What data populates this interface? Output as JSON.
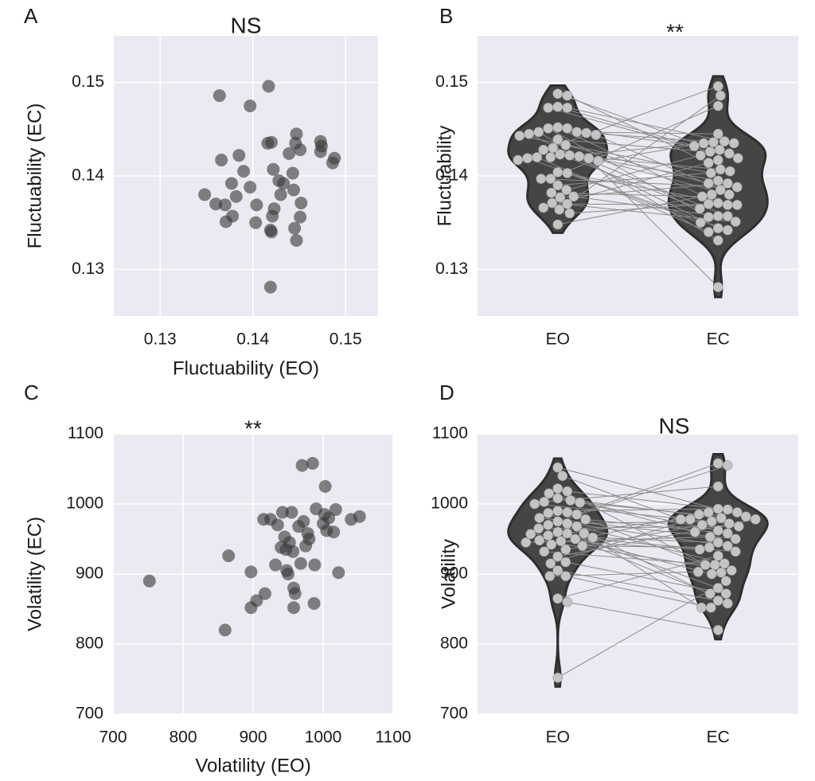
{
  "chart_data": [
    {
      "type": "scatter",
      "panel_label": "A",
      "title": "NS",
      "x_label": "Fluctuability (EO)",
      "y_label": "Fluctuability (EC)",
      "x": [
        0.1364,
        0.1417,
        0.1397,
        0.1366,
        0.1385,
        0.139,
        0.1377,
        0.1397,
        0.1348,
        0.136,
        0.137,
        0.1382,
        0.1371,
        0.1378,
        0.1404,
        0.1403,
        0.1416,
        0.142,
        0.1422,
        0.1428,
        0.1433,
        0.143,
        0.1423,
        0.1421,
        0.1419,
        0.142,
        0.1419,
        0.1439,
        0.1443,
        0.1444,
        0.1446,
        0.1447,
        0.1451,
        0.1452,
        0.1451,
        0.1445,
        0.1447,
        0.1473,
        0.1474,
        0.1473,
        0.1488,
        0.1486
      ],
      "y": [
        0.1486,
        0.1496,
        0.1475,
        0.1417,
        0.1422,
        0.1405,
        0.1392,
        0.1388,
        0.138,
        0.137,
        0.1369,
        0.1378,
        0.1351,
        0.1357,
        0.1369,
        0.135,
        0.1435,
        0.1436,
        0.1407,
        0.1395,
        0.1392,
        0.138,
        0.1365,
        0.1357,
        0.1342,
        0.134,
        0.1281,
        0.1424,
        0.1403,
        0.1385,
        0.1435,
        0.1445,
        0.1428,
        0.1371,
        0.1356,
        0.1344,
        0.1331,
        0.1437,
        0.1432,
        0.1426,
        0.1419,
        0.1414
      ],
      "xlim": [
        0.125,
        0.1535
      ],
      "ylim": [
        0.125,
        0.155
      ],
      "xticks": [
        0.13,
        0.14,
        0.15
      ],
      "yticks": [
        0.13,
        0.14,
        0.15
      ],
      "color": "#3a3a3a",
      "grid": true
    },
    {
      "type": "violin",
      "panel_label": "B",
      "title": "**",
      "y_label": "Fluctuability",
      "categories": [
        "EO",
        "EC"
      ],
      "values": [
        [
          0.1364,
          0.1417,
          0.1397,
          0.1366,
          0.1385,
          0.139,
          0.1377,
          0.1397,
          0.1348,
          0.136,
          0.137,
          0.1382,
          0.1371,
          0.1378,
          0.1404,
          0.1403,
          0.1416,
          0.142,
          0.1422,
          0.1428,
          0.1433,
          0.143,
          0.1423,
          0.1421,
          0.1419,
          0.142,
          0.1419,
          0.1439,
          0.1443,
          0.1444,
          0.1446,
          0.1447,
          0.1451,
          0.1452,
          0.1451,
          0.1445,
          0.1447,
          0.1473,
          0.1474,
          0.1473,
          0.1488,
          0.1486
        ],
        [
          0.1486,
          0.1496,
          0.1475,
          0.1417,
          0.1422,
          0.1405,
          0.1392,
          0.1388,
          0.138,
          0.137,
          0.1369,
          0.1378,
          0.1351,
          0.1357,
          0.1369,
          0.135,
          0.1435,
          0.1436,
          0.1407,
          0.1395,
          0.1392,
          0.138,
          0.1365,
          0.1357,
          0.1342,
          0.134,
          0.1281,
          0.1424,
          0.1403,
          0.1385,
          0.1435,
          0.1445,
          0.1428,
          0.1371,
          0.1356,
          0.1344,
          0.1331,
          0.1437,
          0.1432,
          0.1426,
          0.1419,
          0.1414
        ]
      ],
      "ylim": [
        0.125,
        0.155
      ],
      "yticks": [
        0.13,
        0.14,
        0.15
      ],
      "color": "#454545",
      "point_color": "#c4c4c4",
      "line_color": "#8c8c8c",
      "grid": true
    },
    {
      "type": "scatter",
      "panel_label": "C",
      "title": "**",
      "x_label": "Volatility (EO)",
      "y_label": "Volatility (EC)",
      "x": [
        752,
        860,
        865,
        897,
        897,
        905,
        915,
        917,
        925,
        932,
        935,
        940,
        942,
        945,
        947,
        948,
        950,
        952,
        955,
        957,
        958,
        958,
        960,
        965,
        968,
        970,
        972,
        975,
        978,
        980,
        985,
        987,
        988,
        990,
        1000,
        1002,
        1003,
        1005,
        1008,
        1015,
        1018,
        1022,
        1040,
        1052
      ],
      "y": [
        890,
        820,
        926,
        852,
        903,
        862,
        978,
        872,
        978,
        913,
        970,
        938,
        988,
        953,
        935,
        905,
        900,
        945,
        988,
        932,
        880,
        852,
        872,
        968,
        915,
        1055,
        975,
        940,
        958,
        950,
        1058,
        858,
        913,
        993,
        972,
        985,
        1025,
        962,
        980,
        960,
        992,
        902,
        978,
        982
      ],
      "xlim": [
        700,
        1100
      ],
      "ylim": [
        700,
        1100
      ],
      "xticks": [
        700,
        800,
        900,
        1000,
        1100
      ],
      "yticks": [
        700,
        800,
        900,
        1000,
        1100
      ],
      "color": "#3a3a3a",
      "grid": true
    },
    {
      "type": "violin",
      "panel_label": "D",
      "title": "NS",
      "y_label": "Volatility",
      "categories": [
        "EO",
        "EC"
      ],
      "values": [
        [
          752,
          860,
          865,
          897,
          897,
          905,
          915,
          917,
          925,
          932,
          935,
          940,
          942,
          945,
          947,
          948,
          950,
          952,
          955,
          957,
          958,
          958,
          960,
          965,
          968,
          970,
          972,
          975,
          978,
          980,
          985,
          987,
          988,
          990,
          1000,
          1002,
          1003,
          1005,
          1008,
          1015,
          1018,
          1022,
          1040,
          1052
        ],
        [
          890,
          820,
          926,
          852,
          903,
          862,
          978,
          872,
          978,
          913,
          970,
          938,
          988,
          953,
          935,
          905,
          900,
          945,
          988,
          932,
          880,
          852,
          872,
          968,
          915,
          1055,
          975,
          940,
          958,
          950,
          1058,
          858,
          913,
          993,
          972,
          985,
          1025,
          962,
          980,
          960,
          992,
          902,
          978,
          982
        ]
      ],
      "ylim": [
        700,
        1100
      ],
      "yticks": [
        700,
        800,
        900,
        1000,
        1100
      ],
      "color": "#454545",
      "point_color": "#c4c4c4",
      "line_color": "#8c8c8c",
      "grid": true
    }
  ]
}
